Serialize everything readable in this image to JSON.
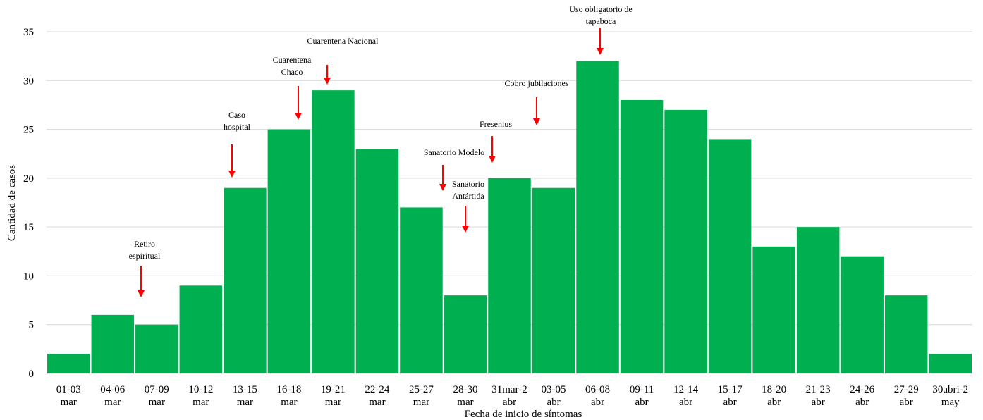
{
  "chart_data": {
    "type": "bar",
    "xlabel": "Fecha de inicio de síntomas",
    "ylabel": "Cantidad de casos",
    "ylim": [
      0,
      35
    ],
    "yticks": [
      0,
      5,
      10,
      15,
      20,
      25,
      30,
      35
    ],
    "grid": true,
    "bar_color": "#00b050",
    "arrow_color": "#ff0000",
    "categories": [
      [
        "01-03",
        "mar"
      ],
      [
        "04-06",
        "mar"
      ],
      [
        "07-09",
        "mar"
      ],
      [
        "10-12",
        "mar"
      ],
      [
        "13-15",
        "mar"
      ],
      [
        "16-18",
        "mar"
      ],
      [
        "19-21",
        "mar"
      ],
      [
        "22-24",
        "mar"
      ],
      [
        "25-27",
        "mar"
      ],
      [
        "28-30",
        "mar"
      ],
      [
        "31mar-2",
        "abr"
      ],
      [
        "03-05",
        "abr"
      ],
      [
        "06-08",
        "abr"
      ],
      [
        "09-11",
        "abr"
      ],
      [
        "12-14",
        "abr"
      ],
      [
        "15-17",
        "abr"
      ],
      [
        "18-20",
        "abr"
      ],
      [
        "21-23",
        "abr"
      ],
      [
        "24-26",
        "abr"
      ],
      [
        "27-29",
        "abr"
      ],
      [
        "30abri-2",
        "may"
      ]
    ],
    "values": [
      2,
      6,
      5,
      9,
      19,
      25,
      29,
      23,
      17,
      8,
      20,
      19,
      32,
      28,
      27,
      24,
      13,
      15,
      12,
      8,
      2
    ],
    "annotations": [
      {
        "lines": [
          "Retiro",
          "espiritual"
        ],
        "category_index": 2
      },
      {
        "lines": [
          "Caso",
          "hospital"
        ],
        "category_index": 4
      },
      {
        "lines": [
          "Cuarentena",
          "Chaco"
        ],
        "category_index": 5
      },
      {
        "lines": [
          "Cuarentena Nacional"
        ],
        "category_index": 6
      },
      {
        "lines": [
          "Sanatorio  Modelo"
        ],
        "category_index": 8.5
      },
      {
        "lines": [
          "Sanatorio",
          "Antártida"
        ],
        "category_index": 9
      },
      {
        "lines": [
          "Fresenius"
        ],
        "category_index": 10
      },
      {
        "lines": [
          "Cobro jubilaciones"
        ],
        "category_index": 11
      },
      {
        "lines": [
          "Uso obligatorio de",
          "tapaboca"
        ],
        "category_index": 12
      }
    ]
  }
}
